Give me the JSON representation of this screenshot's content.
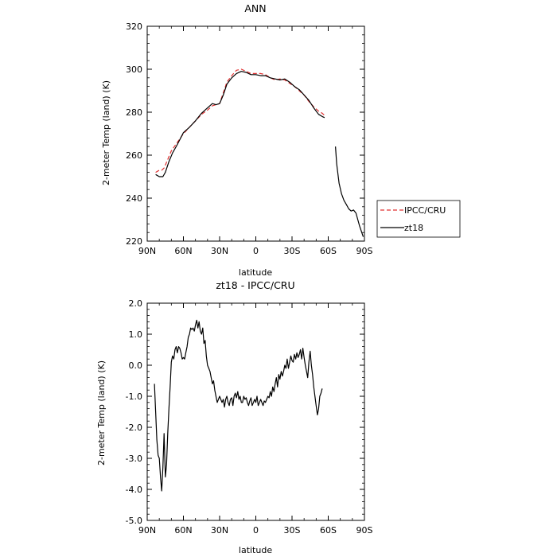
{
  "chart_data": [
    {
      "type": "line",
      "title": "ANN",
      "xlabel": "latitude",
      "ylabel": "2-meter Temp (land) (K)",
      "xlim": [
        90,
        -90
      ],
      "ylim": [
        220,
        320
      ],
      "xticks": [
        90,
        60,
        30,
        0,
        -30,
        -60,
        -90
      ],
      "xtick_labels": [
        "90N",
        "60N",
        "30N",
        "0",
        "30S",
        "60S",
        "90S"
      ],
      "yticks": [
        220,
        240,
        260,
        280,
        300,
        320
      ],
      "ytick_labels": [
        "220",
        "240",
        "260",
        "280",
        "300",
        "320"
      ],
      "grid": false,
      "legend": {
        "placement": "right",
        "entries": [
          "IPCC/CRU",
          "zt18"
        ]
      },
      "series": [
        {
          "name": "IPCC/CRU",
          "color": "#e03030",
          "dash": "dashed",
          "segments": [
            {
              "x": [
                83,
                80,
                78,
                76,
                73,
                70,
                65,
                60,
                55,
                50,
                45,
                40,
                36,
                33,
                30,
                27,
                24,
                20,
                16,
                12,
                8,
                4,
                0,
                -4,
                -8,
                -12,
                -16,
                -20,
                -24,
                -28,
                -32,
                -36,
                -40,
                -44,
                -48,
                -52,
                -55,
                -58
              ],
              "y": [
                252,
                253,
                253,
                254,
                258,
                262,
                266,
                270,
                273,
                276,
                279,
                281,
                283,
                283.5,
                284,
                289,
                294,
                297,
                299.5,
                300,
                299,
                298,
                298,
                298,
                297.5,
                296,
                295,
                295.5,
                295,
                293.5,
                292,
                290,
                288,
                285,
                282.5,
                280.5,
                279.5,
                278
              ]
            }
          ]
        },
        {
          "name": "zt18",
          "color": "#000000",
          "dash": "solid",
          "segments": [
            {
              "x": [
                83,
                80,
                77,
                75,
                72,
                69,
                65,
                60,
                55,
                50,
                45,
                40,
                36,
                33,
                30,
                27,
                24,
                20,
                16,
                12,
                8,
                4,
                0,
                -4,
                -8,
                -12,
                -16,
                -20,
                -24,
                -28,
                -32,
                -36,
                -40,
                -44,
                -48,
                -52,
                -55,
                -57
              ],
              "y": [
                251,
                250,
                250,
                252,
                257,
                261,
                265,
                270.5,
                273,
                276,
                279.5,
                282,
                284,
                283.5,
                284,
                288,
                293,
                296,
                298,
                299,
                298.5,
                297.5,
                297.5,
                297,
                297,
                296,
                295.5,
                295,
                295.5,
                294,
                292,
                290.5,
                288,
                285.5,
                282,
                279,
                278,
                277.5
              ]
            },
            {
              "x": [
                -66,
                -67,
                -69,
                -71,
                -73,
                -75,
                -77,
                -79,
                -81,
                -83,
                -86,
                -89
              ],
              "y": [
                264,
                256,
                247,
                242,
                239,
                237,
                235,
                234,
                234.5,
                233,
                227,
                222
              ]
            }
          ]
        }
      ]
    },
    {
      "type": "line",
      "title": "zt18 - IPCC/CRU",
      "xlabel": "latitude",
      "ylabel": "2-meter Temp (land) (K)",
      "xlim": [
        90,
        -90
      ],
      "ylim": [
        -5,
        2
      ],
      "xticks": [
        90,
        60,
        30,
        0,
        -30,
        -60,
        -90
      ],
      "xtick_labels": [
        "90N",
        "60N",
        "30N",
        "0",
        "30S",
        "60S",
        "90S"
      ],
      "yticks": [
        -5,
        -4,
        -3,
        -2,
        -1,
        0,
        1,
        2
      ],
      "ytick_labels": [
        "-5.0",
        "-4.0",
        "-3.0",
        "-2.0",
        "-1.0",
        "0.0",
        "1.0",
        "2.0"
      ],
      "grid": false,
      "series": [
        {
          "color": "#000000",
          "dash": "solid",
          "segments": [
            {
              "x": [
                84,
                83,
                82,
                81,
                80,
                79,
                78,
                77,
                76,
                75,
                74,
                73,
                72,
                71,
                70,
                69,
                68,
                67,
                66,
                65,
                64,
                63,
                62,
                61,
                60,
                59,
                58,
                57,
                56,
                55,
                54,
                53,
                52,
                51,
                50,
                49,
                48,
                47,
                46,
                45,
                44,
                43,
                42,
                41,
                40,
                39,
                38,
                37,
                36,
                35,
                34,
                33,
                32,
                31,
                30,
                29,
                28,
                27,
                26,
                25,
                24,
                23,
                22,
                21,
                20,
                19,
                18,
                17,
                16,
                15,
                14,
                13,
                12,
                11,
                10,
                9,
                8,
                7,
                6,
                5,
                4,
                3,
                2,
                1,
                0,
                -1,
                -2,
                -3,
                -4,
                -5,
                -6,
                -7,
                -8,
                -9,
                -10,
                -11,
                -12,
                -13,
                -14,
                -15,
                -16,
                -17,
                -18,
                -19,
                -20,
                -21,
                -22,
                -23,
                -24,
                -25,
                -26,
                -27,
                -28,
                -29,
                -30,
                -31,
                -32,
                -33,
                -34,
                -35,
                -36,
                -37,
                -38,
                -39,
                -40,
                -41,
                -42,
                -43,
                -44,
                -45,
                -46,
                -47,
                -48,
                -49,
                -50,
                -51,
                -52,
                -53,
                -54,
                -55
              ],
              "y": [
                -0.6,
                -1.5,
                -2.4,
                -2.9,
                -3.0,
                -3.6,
                -4.05,
                -3.3,
                -2.2,
                -3.6,
                -3.2,
                -2.2,
                -1.4,
                -0.7,
                0.1,
                0.3,
                0.2,
                0.5,
                0.6,
                0.4,
                0.6,
                0.55,
                0.4,
                0.2,
                0.25,
                0.2,
                0.4,
                0.6,
                0.9,
                1.0,
                1.2,
                1.15,
                1.2,
                1.1,
                1.3,
                1.45,
                1.2,
                1.4,
                1.1,
                1.0,
                1.2,
                0.7,
                0.8,
                0.3,
                0.0,
                -0.1,
                -0.2,
                -0.4,
                -0.6,
                -0.5,
                -0.8,
                -1.0,
                -1.2,
                -1.1,
                -1.0,
                -1.1,
                -1.2,
                -1.1,
                -1.35,
                -1.1,
                -1.0,
                -1.2,
                -1.3,
                -1.1,
                -1.05,
                -1.3,
                -1.0,
                -0.9,
                -1.05,
                -0.85,
                -1.1,
                -1.0,
                -1.2,
                -1.2,
                -1.0,
                -1.1,
                -1.05,
                -1.2,
                -1.3,
                -1.15,
                -1.05,
                -1.3,
                -1.2,
                -1.1,
                -1.2,
                -1.0,
                -1.3,
                -1.2,
                -1.1,
                -1.2,
                -1.3,
                -1.15,
                -1.2,
                -1.1,
                -1.0,
                -1.05,
                -0.85,
                -1.0,
                -0.7,
                -0.85,
                -0.6,
                -0.4,
                -0.7,
                -0.3,
                -0.45,
                -0.2,
                -0.35,
                -0.2,
                0.0,
                -0.1,
                0.2,
                -0.1,
                0.1,
                0.3,
                0.15,
                0.1,
                0.35,
                0.2,
                0.4,
                0.25,
                0.35,
                0.5,
                0.2,
                0.55,
                0.25,
                0.0,
                -0.2,
                -0.4,
                0.1,
                0.45,
                0.0,
                -0.3,
                -0.7,
                -1.0,
                -1.3,
                -1.6,
                -1.4,
                -1.0,
                -0.9,
                -0.75
              ]
            }
          ]
        }
      ]
    }
  ]
}
